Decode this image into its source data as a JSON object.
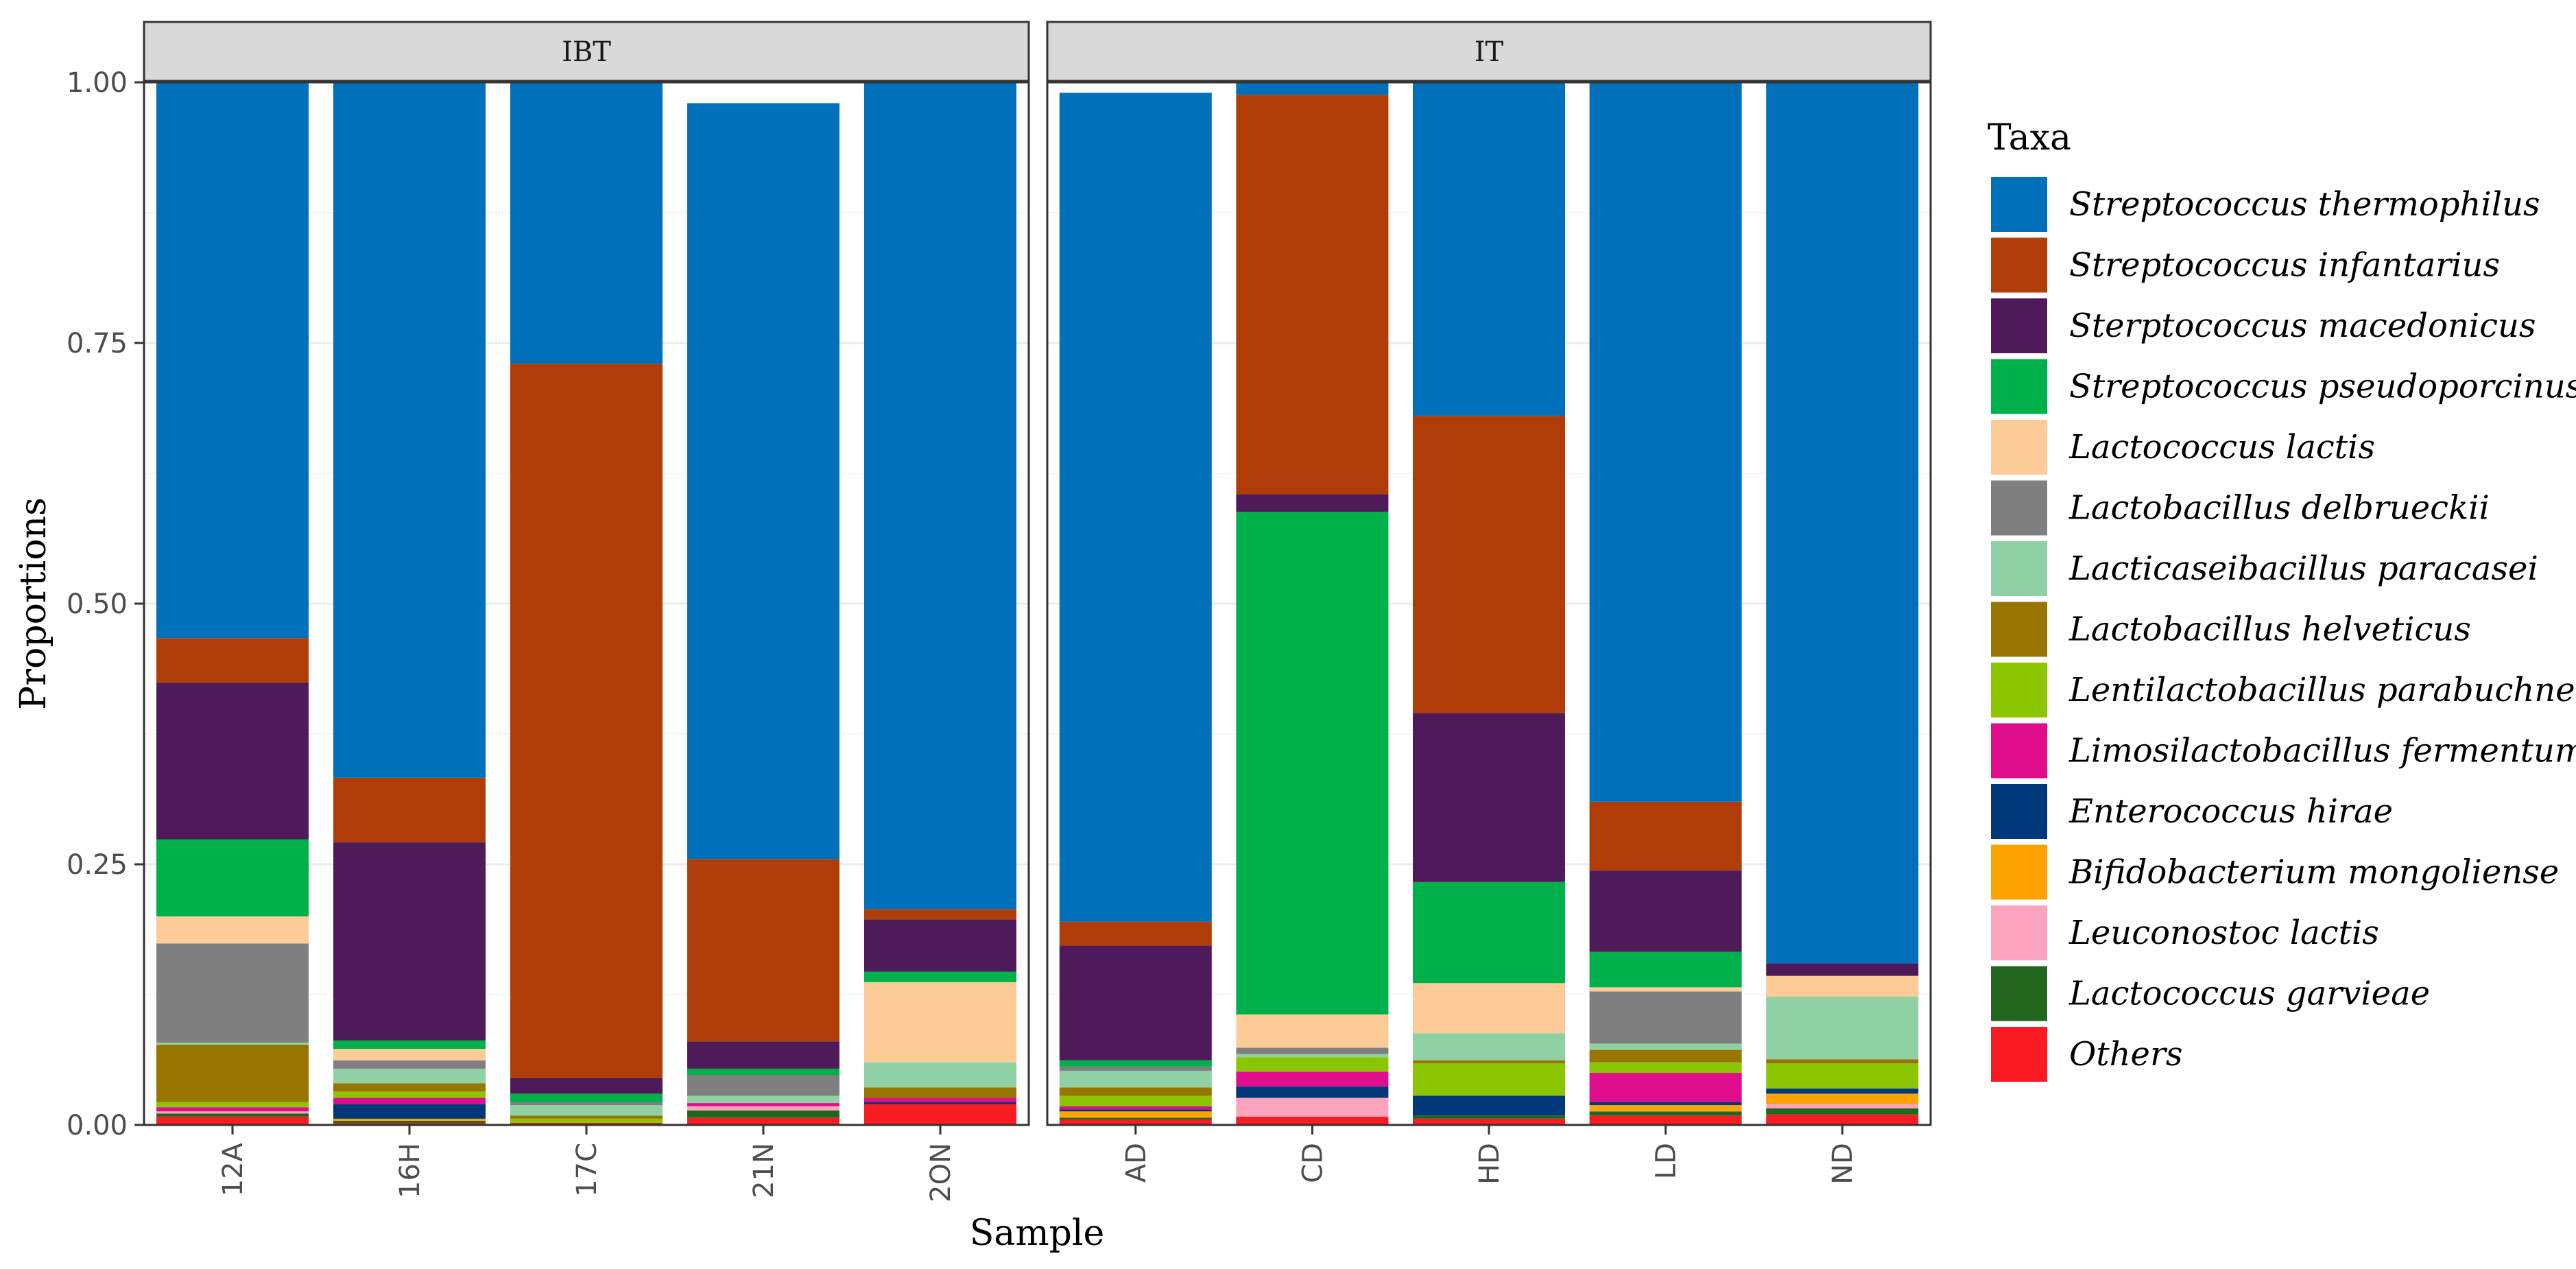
{
  "chart_data": {
    "type": "bar",
    "stacked": true,
    "facet_strips": [
      "IBT",
      "IT"
    ],
    "panels": [
      {
        "name": "IBT",
        "categories": [
          "12A",
          "16H",
          "17C",
          "21N",
          "2ON"
        ]
      },
      {
        "name": "IT",
        "categories": [
          "AD",
          "CD",
          "HD",
          "LD",
          "ND"
        ]
      }
    ],
    "xlabel": "Sample",
    "ylabel": "Proportions",
    "ylim": [
      0,
      1
    ],
    "yticks": [
      "0.00",
      "0.25",
      "0.50",
      "0.75",
      "1.00"
    ],
    "ytick_values": [
      0,
      0.25,
      0.5,
      0.75,
      1
    ],
    "legend_title": "Taxa",
    "legend_position": "right",
    "grid": true,
    "series": [
      {
        "name": "Streptococcus thermophilus",
        "color": "#0070BA",
        "values": [
          0.533,
          0.667,
          0.27,
          0.725,
          0.793,
          0.795,
          0.012,
          0.32,
          0.69,
          0.845
        ]
      },
      {
        "name": "Streptococcus infantarius",
        "color": "#B03D07",
        "values": [
          0.043,
          0.062,
          0.685,
          0.175,
          0.01,
          0.023,
          0.383,
          0.285,
          0.066,
          0.0
        ]
      },
      {
        "name": "Sterptococcus macedonicus",
        "color": "#4E1A5A",
        "values": [
          0.15,
          0.19,
          0.015,
          0.026,
          0.05,
          0.11,
          0.017,
          0.162,
          0.078,
          0.012
        ]
      },
      {
        "name": "Streptococcus pseudoporcinus",
        "color": "#00B04B",
        "values": [
          0.074,
          0.008,
          0.008,
          0.006,
          0.01,
          0.006,
          0.482,
          0.097,
          0.034,
          0.0
        ]
      },
      {
        "name": "Lactococcus lactis",
        "color": "#FDCB98",
        "values": [
          0.026,
          0.011,
          0.0,
          0.0,
          0.077,
          0.0,
          0.032,
          0.048,
          0.004,
          0.02
        ]
      },
      {
        "name": "Lactobacillus delbrueckii",
        "color": "#7F7F7F",
        "values": [
          0.095,
          0.008,
          0.003,
          0.02,
          0.0,
          0.004,
          0.006,
          0.0,
          0.05,
          0.0
        ]
      },
      {
        "name": "Lacticaseibacillus paracasei",
        "color": "#8FD1A4",
        "values": [
          0.002,
          0.014,
          0.01,
          0.007,
          0.024,
          0.016,
          0.003,
          0.026,
          0.006,
          0.06
        ]
      },
      {
        "name": "Lactobacillus helveticus",
        "color": "#977500",
        "values": [
          0.055,
          0.008,
          0.003,
          0.0,
          0.01,
          0.008,
          0.0,
          0.003,
          0.012,
          0.004
        ]
      },
      {
        "name": "Lentilactobacillus parabuchneri",
        "color": "#8CC600",
        "values": [
          0.005,
          0.006,
          0.004,
          0.0,
          0.0,
          0.01,
          0.014,
          0.031,
          0.01,
          0.024
        ]
      },
      {
        "name": "Limosilactobacillus fermentum",
        "color": "#E00E8C",
        "values": [
          0.004,
          0.006,
          0.0,
          0.003,
          0.004,
          0.003,
          0.014,
          0.0,
          0.028,
          0.0
        ]
      },
      {
        "name": "Enterococcus hirae",
        "color": "#00387A",
        "values": [
          0.0,
          0.014,
          0.0,
          0.0,
          0.002,
          0.002,
          0.011,
          0.019,
          0.003,
          0.005
        ]
      },
      {
        "name": "Bifidobacterium mongoliense",
        "color": "#FFA300",
        "values": [
          0.0,
          0.002,
          0.0,
          0.0,
          0.0,
          0.006,
          0.0,
          0.0,
          0.006,
          0.01
        ]
      },
      {
        "name": "Leuconostoc lactis",
        "color": "#FCA4BE",
        "values": [
          0.002,
          0.0,
          0.0,
          0.004,
          0.0,
          0.0,
          0.018,
          0.0,
          0.0,
          0.004
        ]
      },
      {
        "name": "Lactococcus garvieae",
        "color": "#22661E",
        "values": [
          0.003,
          0.002,
          0.0,
          0.007,
          0.0,
          0.002,
          0.0,
          0.003,
          0.004,
          0.006
        ]
      },
      {
        "name": "Others",
        "color": "#FA1A22",
        "values": [
          0.008,
          0.002,
          0.002,
          0.007,
          0.02,
          0.005,
          0.008,
          0.006,
          0.009,
          0.01
        ]
      }
    ]
  },
  "colors": {
    "strip_fill": "#D9D9D9",
    "strip_border": "#333333",
    "panel_border": "#333333",
    "grid_major": "#EBEBEB",
    "grid_minor": "#F5F5F5",
    "tick_color": "#333333"
  }
}
